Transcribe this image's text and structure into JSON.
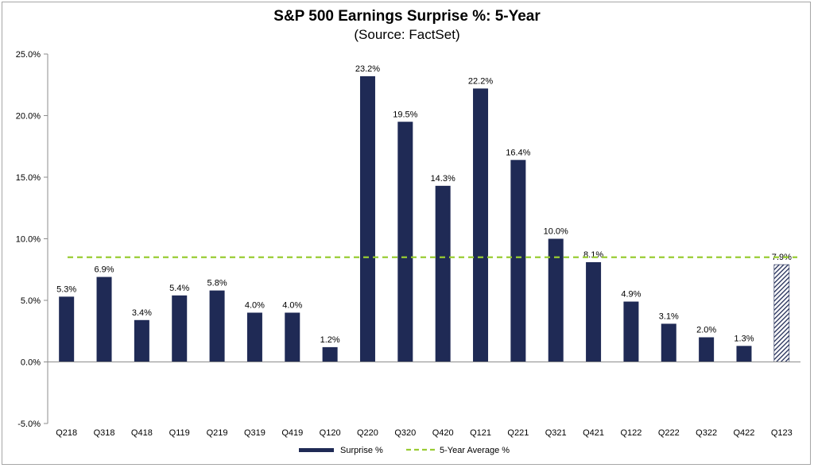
{
  "chart_data": {
    "type": "bar",
    "title": "S&P 500 Earnings Surprise %: 5-Year",
    "subtitle": "(Source: FactSet)",
    "categories": [
      "Q218",
      "Q318",
      "Q418",
      "Q119",
      "Q219",
      "Q319",
      "Q419",
      "Q120",
      "Q220",
      "Q320",
      "Q420",
      "Q121",
      "Q221",
      "Q321",
      "Q421",
      "Q122",
      "Q222",
      "Q322",
      "Q422",
      "Q123"
    ],
    "series": [
      {
        "name": "Surprise %",
        "values": [
          5.3,
          6.9,
          3.4,
          5.4,
          5.8,
          4.0,
          4.0,
          1.2,
          23.2,
          19.5,
          14.3,
          22.2,
          16.4,
          10.0,
          8.1,
          4.9,
          3.1,
          2.0,
          1.3,
          7.9
        ],
        "data_labels": [
          "5.3%",
          "6.9%",
          "3.4%",
          "5.4%",
          "5.8%",
          "4.0%",
          "4.0%",
          "1.2%",
          "23.2%",
          "19.5%",
          "14.3%",
          "22.2%",
          "16.4%",
          "10.0%",
          "8.1%",
          "4.9%",
          "3.1%",
          "2.0%",
          "1.3%",
          "7.9%"
        ],
        "color": "#1f2a55",
        "hatched_last": true
      },
      {
        "name": "5-Year Average %",
        "type": "line",
        "value": 8.5,
        "color": "#99cc33",
        "dashed": true
      }
    ],
    "ylim": [
      -5,
      25
    ],
    "yticks": [
      -5,
      0,
      5,
      10,
      15,
      20,
      25
    ],
    "ytick_labels": [
      "-5.0%",
      "0.0%",
      "5.0%",
      "10.0%",
      "15.0%",
      "20.0%",
      "25.0%"
    ],
    "grid": false,
    "legend_position": "bottom-center"
  }
}
